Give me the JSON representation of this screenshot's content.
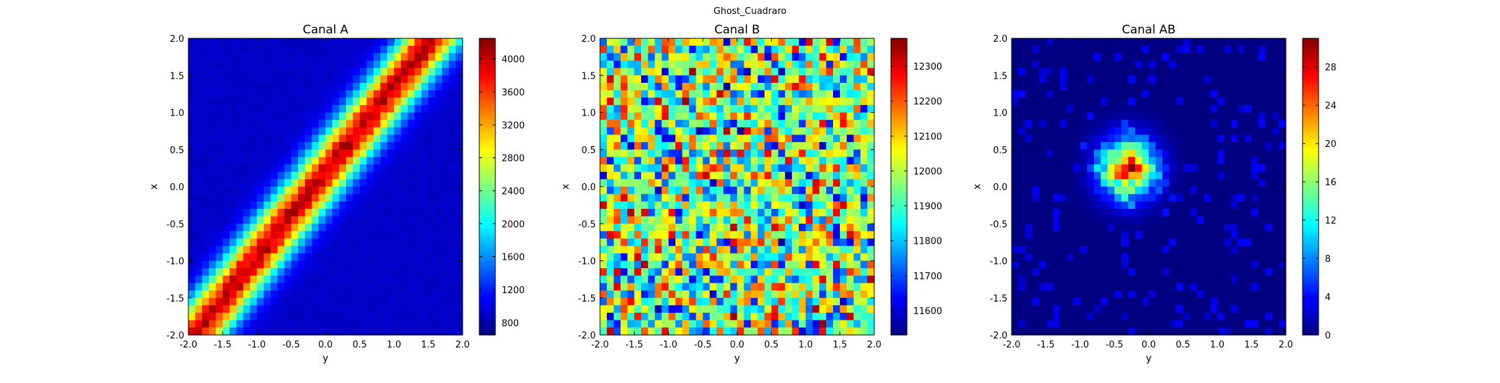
{
  "suptitle": "Ghost_Cuadraro",
  "chart_data": [
    {
      "type": "heatmap",
      "title": "Canal A",
      "xlabel": "y",
      "ylabel": "x",
      "xlim": [
        -2.0,
        2.0
      ],
      "ylim": [
        -2.0,
        2.0
      ],
      "xticks": [
        "-2.0",
        "-1.5",
        "-1.0",
        "-0.5",
        "0.0",
        "0.5",
        "1.0",
        "1.5",
        "2.0"
      ],
      "yticks": [
        "-2.0",
        "-1.5",
        "-1.0",
        "-0.5",
        "0.0",
        "0.5",
        "1.0",
        "1.5",
        "2.0"
      ],
      "colorbar": {
        "min": 650,
        "max": 4250,
        "ticks": [
          800,
          1200,
          1600,
          2000,
          2400,
          2800,
          3200,
          3600,
          4000
        ]
      },
      "bins": 40,
      "pattern": {
        "kind": "diagonal_band",
        "baseline": 900,
        "peak": 4200,
        "slope": 1.15,
        "intercept": 0.2,
        "width": 0.35
      },
      "colormap": "jet"
    },
    {
      "type": "heatmap",
      "title": "Canal B",
      "xlabel": "y",
      "ylabel": "x",
      "xlim": [
        -2.0,
        2.0
      ],
      "ylim": [
        -2.0,
        2.0
      ],
      "xticks": [
        "-2.0",
        "-1.5",
        "-1.0",
        "-0.5",
        "0.0",
        "0.5",
        "1.0",
        "1.5",
        "2.0"
      ],
      "yticks": [
        "-2.0",
        "-1.5",
        "-1.0",
        "-0.5",
        "0.0",
        "0.5",
        "1.0",
        "1.5",
        "2.0"
      ],
      "colorbar": {
        "min": 11530,
        "max": 12380,
        "ticks": [
          11600,
          11700,
          11800,
          11900,
          12000,
          12100,
          12200,
          12300
        ]
      },
      "bins": 40,
      "pattern": {
        "kind": "noise",
        "mean": 11960,
        "spread": 420
      },
      "colormap": "jet"
    },
    {
      "type": "heatmap",
      "title": "Canal AB",
      "xlabel": "y",
      "ylabel": "x",
      "xlim": [
        -2.0,
        2.0
      ],
      "ylim": [
        -2.0,
        2.0
      ],
      "xticks": [
        "-2.0",
        "-1.5",
        "-1.0",
        "-0.5",
        "0.0",
        "0.5",
        "1.0",
        "1.5",
        "2.0"
      ],
      "yticks": [
        "-2.0",
        "-1.5",
        "-1.0",
        "-0.5",
        "0.0",
        "0.5",
        "1.0",
        "1.5",
        "2.0"
      ],
      "colorbar": {
        "min": 0,
        "max": 31,
        "ticks": [
          0,
          4,
          8,
          12,
          16,
          20,
          24,
          28
        ]
      },
      "bins": 40,
      "pattern": {
        "kind": "blob",
        "cx": -0.3,
        "cy": 0.25,
        "sigma": 0.28,
        "peak": 31
      },
      "colormap": "jet"
    }
  ]
}
